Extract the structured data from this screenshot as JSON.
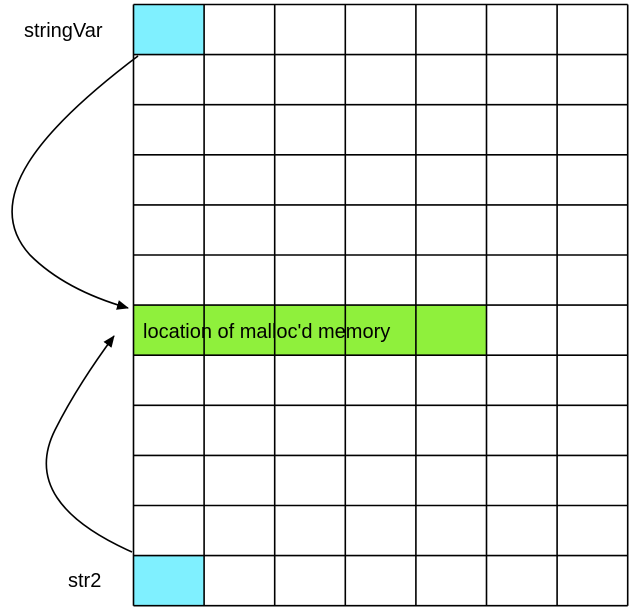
{
  "labels": {
    "top": "stringVar",
    "bottom": "str2",
    "malloc_region": "location of malloc'd memory"
  },
  "grid": {
    "rows": 12,
    "cols": 7,
    "highlights": [
      {
        "name": "stringvar-cell",
        "row": 0,
        "col": 0,
        "span": 1,
        "color": "#7ff0ff"
      },
      {
        "name": "malloc-region",
        "row": 6,
        "col": 0,
        "span": 5,
        "color": "#8ff03c"
      },
      {
        "name": "str2-cell",
        "row": 11,
        "col": 0,
        "span": 1,
        "color": "#7ff0ff"
      }
    ]
  },
  "colors": {
    "grid_line": "#000000",
    "pointer_cell": "#7ff0ff",
    "malloc": "#8ff03c"
  }
}
